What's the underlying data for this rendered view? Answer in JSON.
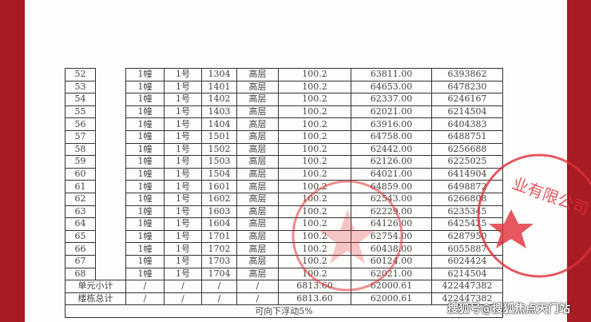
{
  "rows": [
    [
      "52",
      "1幢",
      "1号",
      "1304",
      "高层",
      "100.2",
      "63811.00",
      "6393862"
    ],
    [
      "53",
      "1幢",
      "1号",
      "1401",
      "高层",
      "100.2",
      "64653.00",
      "6478230"
    ],
    [
      "54",
      "1幢",
      "1号",
      "1402",
      "高层",
      "100.2",
      "62337.00",
      "6246167"
    ],
    [
      "55",
      "1幢",
      "1号",
      "1403",
      "高层",
      "100.2",
      "62021.00",
      "6214504"
    ],
    [
      "56",
      "1幢",
      "1号",
      "1404",
      "高层",
      "100.2",
      "63916.00",
      "6404383"
    ],
    [
      "57",
      "1幢",
      "1号",
      "1501",
      "高层",
      "100.2",
      "64758.00",
      "6488751"
    ],
    [
      "58",
      "1幢",
      "1号",
      "1502",
      "高层",
      "100.2",
      "62442.00",
      "6256688"
    ],
    [
      "59",
      "1幢",
      "1号",
      "1503",
      "高层",
      "100.2",
      "62126.00",
      "6225025"
    ],
    [
      "60",
      "1幢",
      "1号",
      "1504",
      "高层",
      "100.2",
      "64021.00",
      "6414904"
    ],
    [
      "61",
      "1幢",
      "1号",
      "1601",
      "高层",
      "100.2",
      "64859.00",
      "6498872"
    ],
    [
      "62",
      "1幢",
      "1号",
      "1602",
      "高层",
      "100.2",
      "62543.00",
      "6266808"
    ],
    [
      "63",
      "1幢",
      "1号",
      "1603",
      "高层",
      "100.2",
      "62229.00",
      "6235345"
    ],
    [
      "64",
      "1幢",
      "1号",
      "1604",
      "高层",
      "100.2",
      "64126.00",
      "6425425"
    ],
    [
      "65",
      "1幢",
      "1号",
      "1701",
      "高层",
      "100.2",
      "62754.00",
      "6287950"
    ],
    [
      "66",
      "1幢",
      "1号",
      "1702",
      "高层",
      "100.2",
      "60438.00",
      "6055887"
    ],
    [
      "67",
      "1幢",
      "1号",
      "1703",
      "高层",
      "100.2",
      "60124.00",
      "6024424"
    ],
    [
      "68",
      "1幢",
      "1号",
      "1704",
      "高层",
      "100.2",
      "62021.00",
      "6214504"
    ]
  ],
  "totals": [
    [
      "单元小计",
      "/",
      "/",
      "/",
      "/",
      "6813.60",
      "62000.61",
      "422447382"
    ],
    [
      "楼栋总计",
      "/",
      "/",
      "/",
      "/",
      "6813.60",
      "62000.61",
      "422447382"
    ]
  ],
  "note": "可向下浮动5%",
  "stamp_text": "业有限公司",
  "watermark": "搜狐号@搜狐焦点天门站",
  "colors": {
    "border_red": "#a81b22",
    "stamp_red": "#e0303a"
  }
}
